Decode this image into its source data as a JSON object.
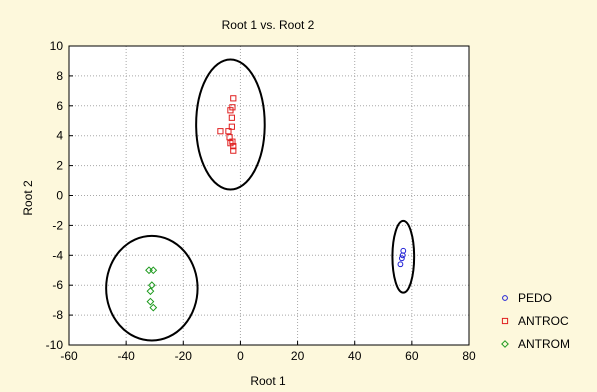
{
  "colors": {
    "background": "#fdf8dc",
    "plot_background": "#ffffff",
    "grid": "#a8a8a8",
    "ellipse": "#000000"
  },
  "chart_data": {
    "type": "scatter",
    "title": "Root 1 vs. Root 2",
    "xlabel": "Root 1",
    "ylabel": "Root 2",
    "xlim": [
      -60,
      80
    ],
    "ylim": [
      -10,
      10
    ],
    "xticks": [
      -60,
      -40,
      -20,
      0,
      20,
      40,
      60,
      80
    ],
    "yticks": [
      -10,
      -8,
      -6,
      -4,
      -2,
      0,
      2,
      4,
      6,
      8,
      10
    ],
    "grid": true,
    "legend_position": "right",
    "series": [
      {
        "name": "PEDO",
        "marker": "circle",
        "color": "#1f1fd6",
        "x": [
          57.0,
          56.5,
          56.0,
          56.8
        ],
        "y": [
          -3.7,
          -4.2,
          -4.6,
          -4.0
        ],
        "ellipse": {
          "cx": 57.0,
          "cy": -4.1,
          "rx": 3.8,
          "ry": 2.4
        }
      },
      {
        "name": "ANTROC",
        "marker": "square",
        "color": "#e01f1f",
        "x": [
          -2.5,
          -2.8,
          -3.5,
          -3.0,
          -3.0,
          -7.0,
          -4.2,
          -3.8,
          -2.8,
          -2.5,
          -2.5,
          -3.5
        ],
        "y": [
          6.5,
          5.9,
          5.7,
          5.2,
          4.6,
          4.3,
          4.3,
          3.9,
          3.6,
          3.3,
          3.0,
          3.5
        ],
        "ellipse": {
          "cx": -3.5,
          "cy": 4.75,
          "rx": 12.0,
          "ry": 4.35
        }
      },
      {
        "name": "ANTROM",
        "marker": "diamond",
        "color": "#1e9a1e",
        "x": [
          -32.0,
          -30.5,
          -31.0,
          -31.5,
          -31.5,
          -30.5
        ],
        "y": [
          -5.0,
          -5.0,
          -6.0,
          -6.4,
          -7.1,
          -7.5
        ],
        "ellipse": {
          "cx": -31.0,
          "cy": -6.2,
          "rx": 16.0,
          "ry": 3.5
        }
      }
    ]
  }
}
